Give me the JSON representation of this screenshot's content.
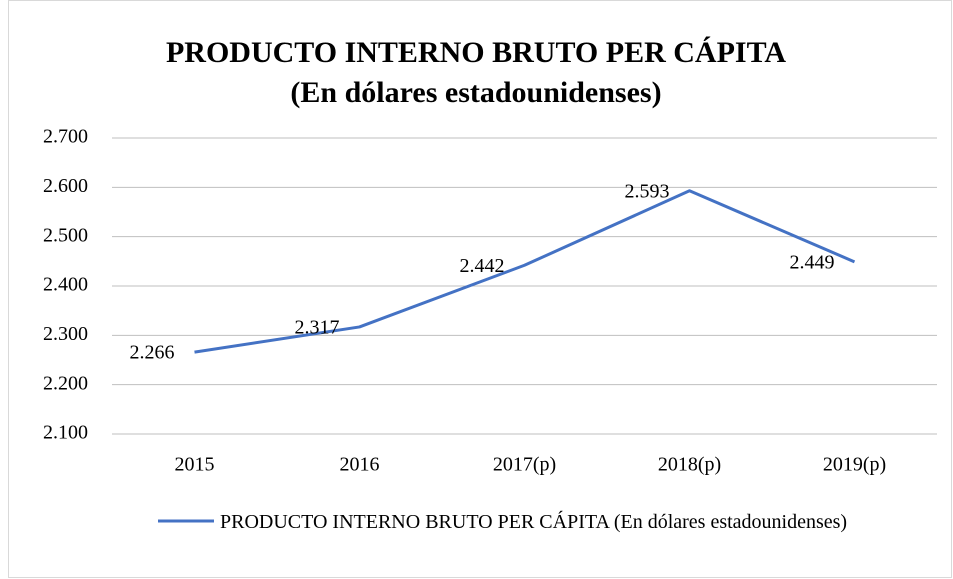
{
  "chart_data": {
    "type": "line",
    "title": "PRODUCTO INTERNO BRUTO PER CÁPITA",
    "subtitle": "(En dólares estadounidenses)",
    "categories": [
      "2015",
      "2016",
      "2017(p)",
      "2018(p)",
      "2019(p)"
    ],
    "series": [
      {
        "name": "PRODUCTO INTERNO BRUTO PER CÁPITA (En dólares estadounidenses)",
        "color": "#4472c4",
        "values": [
          2266,
          2317,
          2442,
          2593,
          2449
        ],
        "value_labels": [
          "2.266",
          "2.317",
          "2.442",
          "2.593",
          "2.449"
        ]
      }
    ],
    "ylim": [
      2100,
      2700
    ],
    "yticks": [
      {
        "value": 2100,
        "label": "2.100"
      },
      {
        "value": 2200,
        "label": "2.200"
      },
      {
        "value": 2300,
        "label": "2.300"
      },
      {
        "value": 2400,
        "label": "2.400"
      },
      {
        "value": 2500,
        "label": "2.500"
      },
      {
        "value": 2600,
        "label": "2.600"
      },
      {
        "value": 2700,
        "label": "2.700"
      }
    ],
    "grid": true,
    "legend": "bottom"
  }
}
